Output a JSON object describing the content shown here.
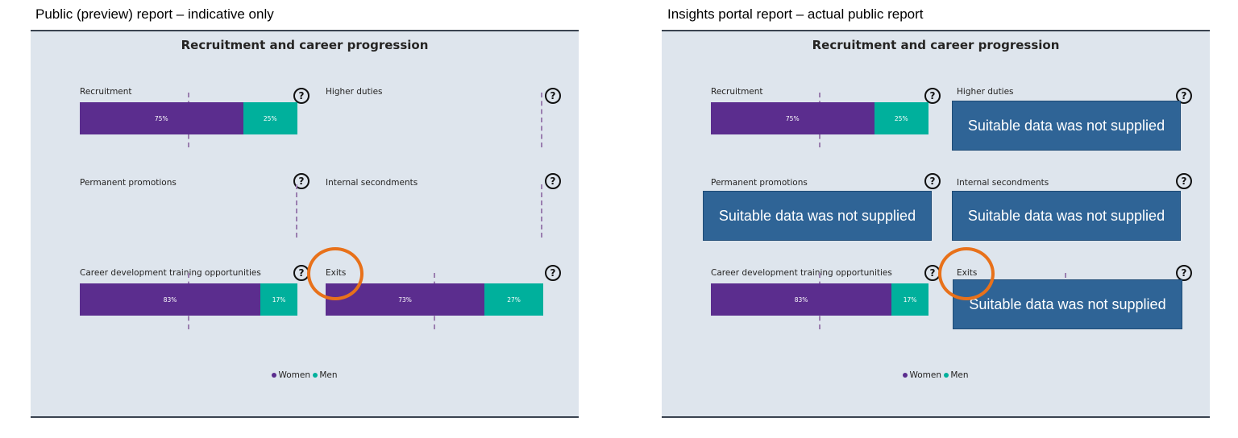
{
  "captions": {
    "left": "Public (preview) report – indicative only",
    "right": "Insights portal report – actual public report"
  },
  "panel": {
    "title": "Recruitment and career progression"
  },
  "tiles": {
    "recruitment": "Recruitment",
    "higher_duties": "Higher duties",
    "permanent_promotions": "Permanent promotions",
    "internal_secondments": "Internal secondments",
    "career_development": "Career development training opportunities",
    "exits": "Exits"
  },
  "help_icon": "?",
  "legend": {
    "women": "Women",
    "men": "Men"
  },
  "colors": {
    "women": "#5b2d8e",
    "men": "#00b09c",
    "nodata": "#2f6496",
    "highlight": "#e8711a"
  },
  "no_data_message": "Suitable data was not supplied",
  "chart_data": [
    {
      "type": "bar",
      "panel": "left",
      "series": [
        "Women",
        "Men"
      ],
      "bars": [
        {
          "tile": "Recruitment",
          "women": 75,
          "men": 25,
          "women_label": "75%",
          "men_label": "25%"
        },
        {
          "tile": "Career development training opportunities",
          "women": 83,
          "men": 17,
          "women_label": "83%",
          "men_label": "17%"
        },
        {
          "tile": "Exits",
          "women": 73,
          "men": 27,
          "women_label": "73%",
          "men_label": "27%"
        }
      ]
    },
    {
      "type": "bar",
      "panel": "right",
      "series": [
        "Women",
        "Men"
      ],
      "bars": [
        {
          "tile": "Recruitment",
          "women": 75,
          "men": 25,
          "women_label": "75%",
          "men_label": "25%"
        },
        {
          "tile": "Career development training opportunities",
          "women": 83,
          "men": 17,
          "women_label": "83%",
          "men_label": "17%"
        }
      ]
    }
  ]
}
